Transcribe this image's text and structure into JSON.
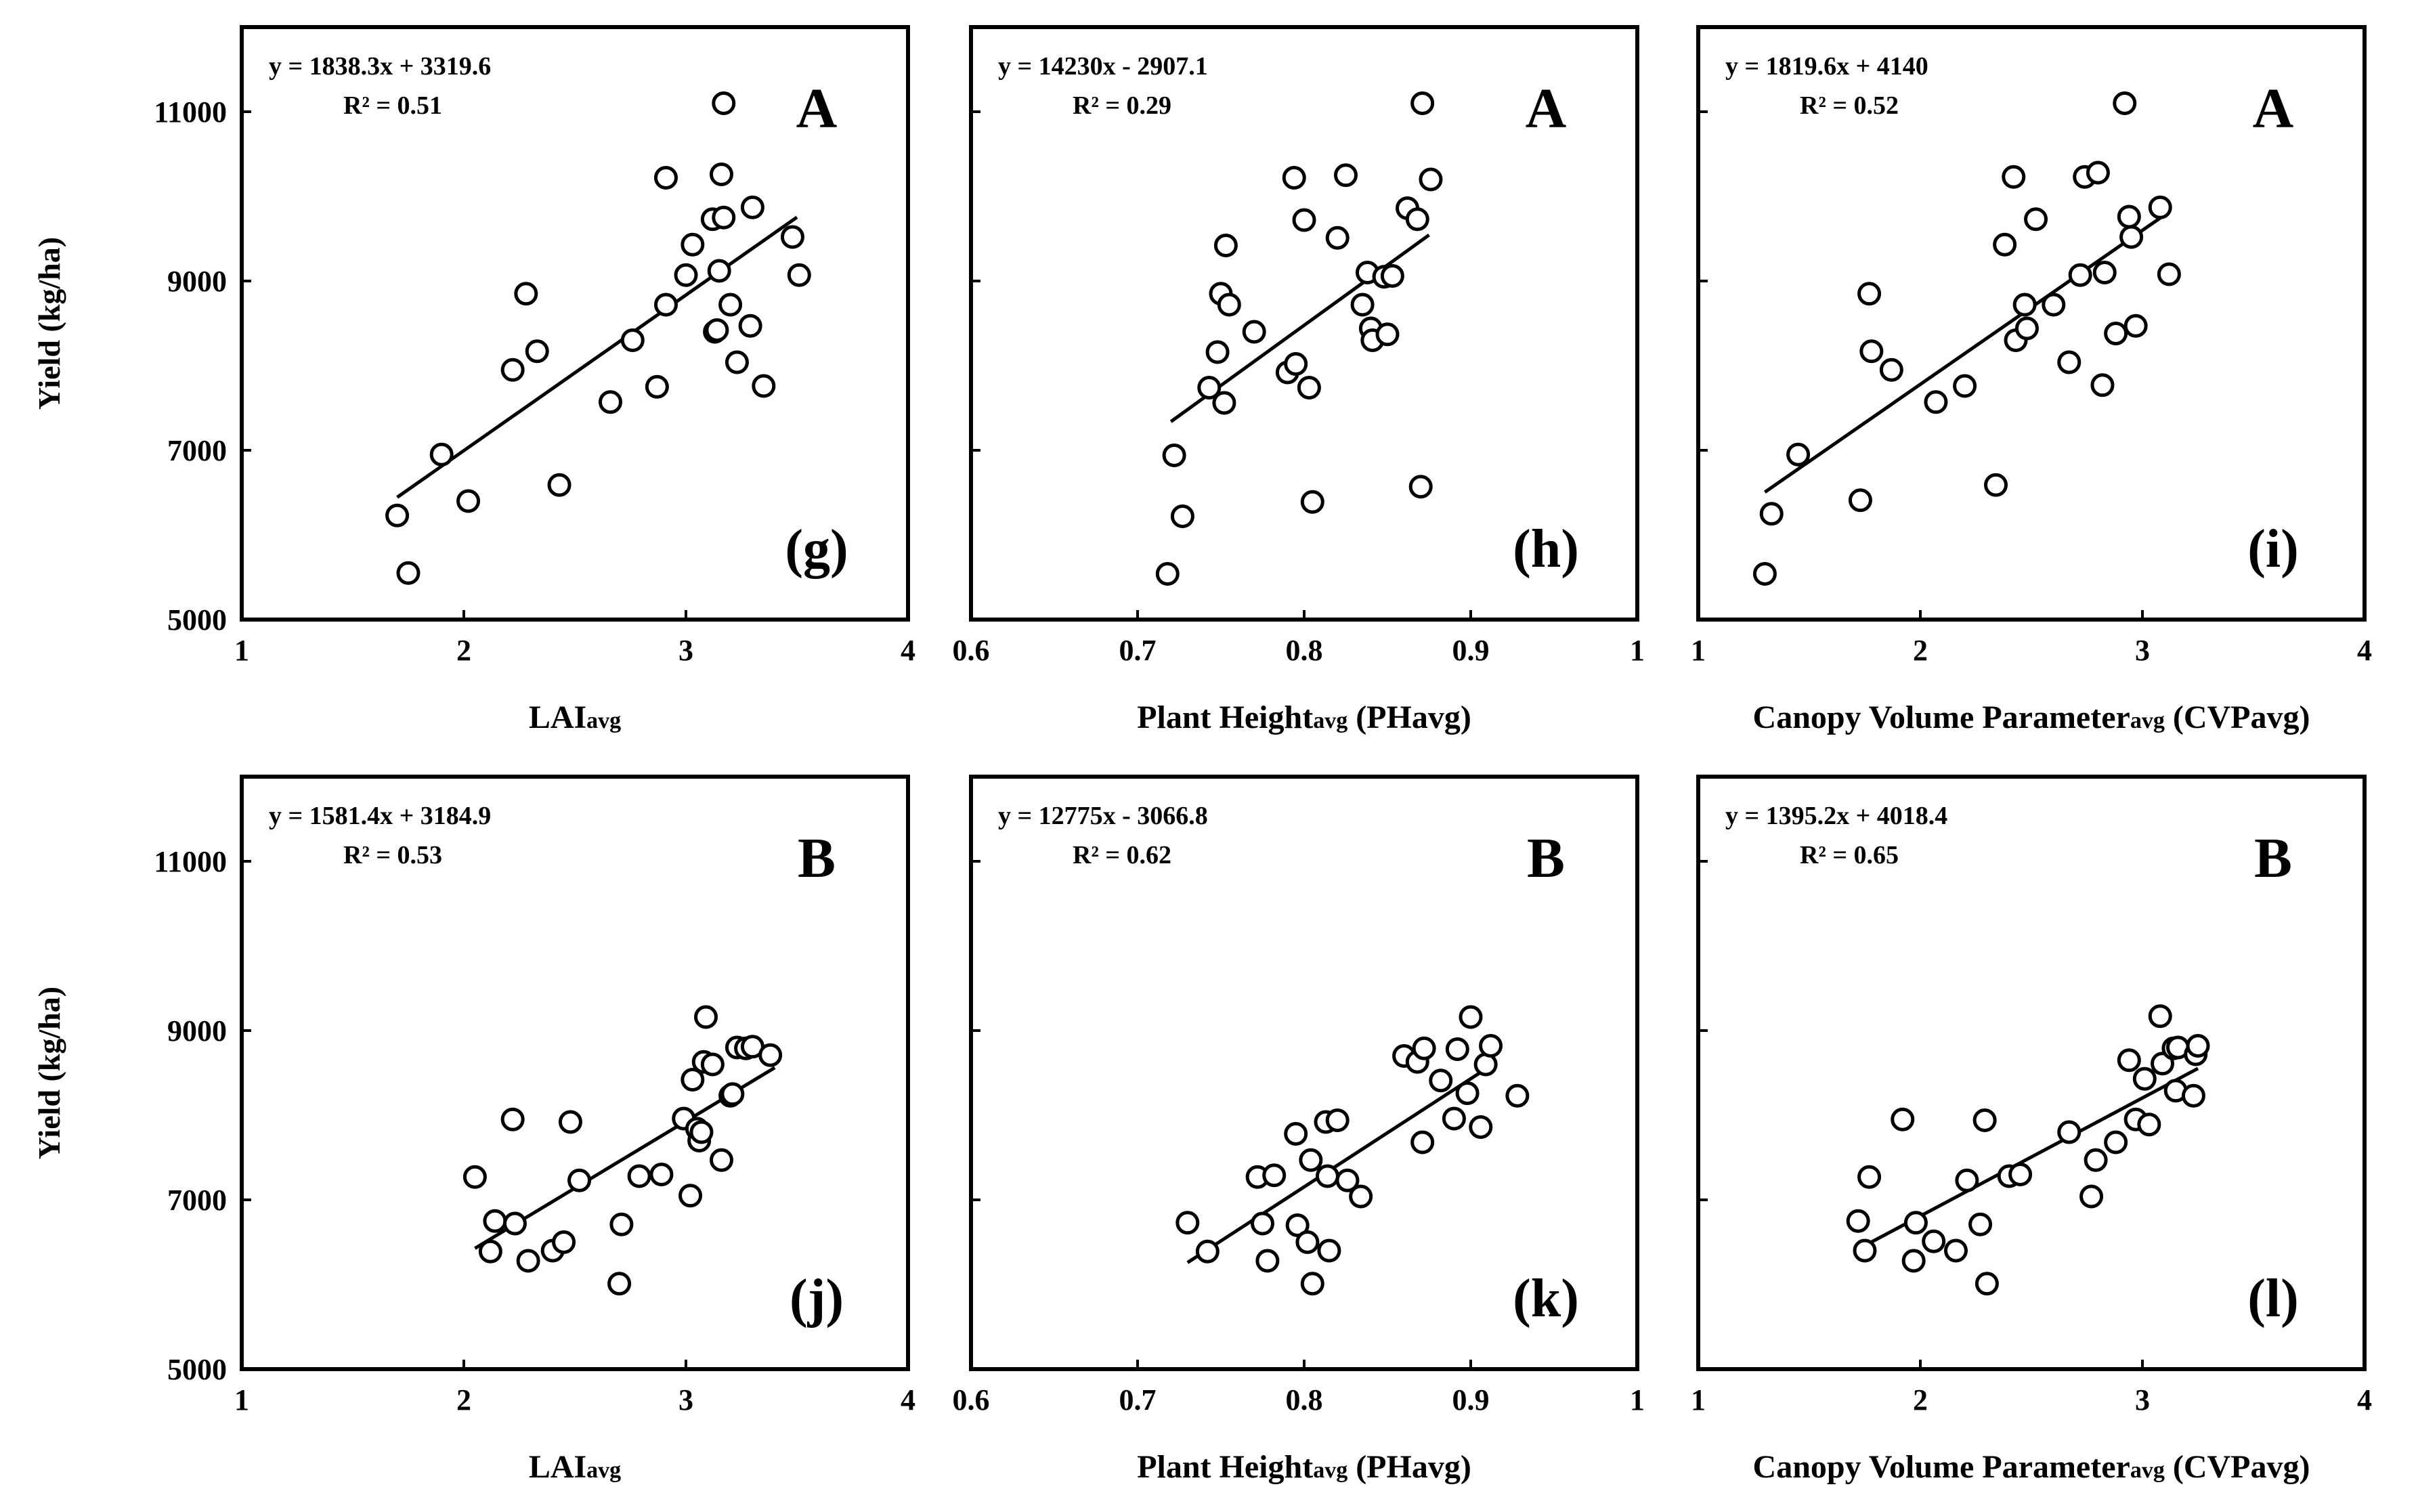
{
  "figure": {
    "background": "#ffffff",
    "ink": "#000000"
  },
  "chart_data": [
    {
      "type": "scatter",
      "panel_id": "g",
      "panel_label": "(g)",
      "group": "A",
      "equation": "y = 1838.3x + 3319.6",
      "r2": "R² = 0.51",
      "slope": 1838.3,
      "intercept": 3319.6,
      "fit_x_range": [
        1.7,
        3.5
      ],
      "xlabel_main": "LAI",
      "xlabel_sub": "avg",
      "xlabel_tail": "",
      "ylabel": "Yield (kg/ha)",
      "xlim": [
        1,
        4
      ],
      "xticks": [
        1,
        2,
        3,
        4
      ],
      "xtick_labels": [
        "1",
        "2",
        "3",
        "4"
      ],
      "ylim": [
        5000,
        12000
      ],
      "yticks": [
        5000,
        7000,
        9000,
        11000
      ],
      "ytick_labels": [
        "5000",
        "7000",
        "9000",
        "11000"
      ],
      "points": [
        [
          1.7,
          6230
        ],
        [
          1.75,
          5550
        ],
        [
          1.9,
          6950
        ],
        [
          2.02,
          6400
        ],
        [
          2.22,
          7950
        ],
        [
          2.28,
          8850
        ],
        [
          2.33,
          8170
        ],
        [
          2.43,
          6590
        ],
        [
          2.66,
          7570
        ],
        [
          2.76,
          8300
        ],
        [
          2.87,
          7750
        ],
        [
          2.91,
          10220
        ],
        [
          2.91,
          8720
        ],
        [
          3.0,
          9070
        ],
        [
          3.03,
          9430
        ],
        [
          3.12,
          9730
        ],
        [
          3.13,
          8400
        ],
        [
          3.14,
          8420
        ],
        [
          3.15,
          9120
        ],
        [
          3.16,
          10260
        ],
        [
          3.17,
          9750
        ],
        [
          3.17,
          11100
        ],
        [
          3.2,
          8720
        ],
        [
          3.23,
          8040
        ],
        [
          3.29,
          8470
        ],
        [
          3.3,
          9870
        ],
        [
          3.35,
          7760
        ],
        [
          3.48,
          9520
        ],
        [
          3.51,
          9070
        ]
      ]
    },
    {
      "type": "scatter",
      "panel_id": "h",
      "panel_label": "(h)",
      "group": "A",
      "equation": "y = 14230x - 2907.1",
      "r2": "R² = 0.29",
      "slope": 14230,
      "intercept": -2907.1,
      "fit_x_range": [
        0.72,
        0.875
      ],
      "xlabel_main": "Plant Height",
      "xlabel_sub": "avg",
      "xlabel_tail": " (PHavg)",
      "ylabel": "",
      "xlim": [
        0.6,
        1.0
      ],
      "xticks": [
        0.6,
        0.7,
        0.8,
        0.9,
        1.0
      ],
      "xtick_labels": [
        "0.6",
        "0.7",
        "0.8",
        "0.9",
        "1"
      ],
      "ylim": [
        5000,
        12000
      ],
      "yticks": [
        5000,
        7000,
        9000,
        11000
      ],
      "ytick_labels": [
        "",
        "",
        "",
        ""
      ],
      "points": [
        [
          0.718,
          5540
        ],
        [
          0.722,
          6940
        ],
        [
          0.727,
          6220
        ],
        [
          0.743,
          7740
        ],
        [
          0.748,
          8160
        ],
        [
          0.75,
          8850
        ],
        [
          0.752,
          7560
        ],
        [
          0.753,
          9420
        ],
        [
          0.755,
          8720
        ],
        [
          0.77,
          8400
        ],
        [
          0.79,
          7920
        ],
        [
          0.794,
          10220
        ],
        [
          0.795,
          8020
        ],
        [
          0.8,
          9720
        ],
        [
          0.803,
          7740
        ],
        [
          0.805,
          6390
        ],
        [
          0.82,
          9510
        ],
        [
          0.825,
          10250
        ],
        [
          0.835,
          8720
        ],
        [
          0.838,
          9100
        ],
        [
          0.84,
          8440
        ],
        [
          0.841,
          8300
        ],
        [
          0.848,
          9050
        ],
        [
          0.85,
          8370
        ],
        [
          0.853,
          9060
        ],
        [
          0.862,
          9860
        ],
        [
          0.868,
          9730
        ],
        [
          0.87,
          6570
        ],
        [
          0.871,
          11100
        ],
        [
          0.876,
          10200
        ]
      ]
    },
    {
      "type": "scatter",
      "panel_id": "i",
      "panel_label": "(i)",
      "group": "A",
      "equation": "y = 1819.6x + 4140",
      "r2": "R² = 0.52",
      "slope": 1819.6,
      "intercept": 4140,
      "fit_x_range": [
        1.3,
        3.1
      ],
      "xlabel_main": "Canopy Volume Parameter",
      "xlabel_sub": "avg",
      "xlabel_tail": " (CVPavg)",
      "ylabel": "",
      "xlim": [
        1,
        4
      ],
      "xticks": [
        1,
        2,
        3,
        4
      ],
      "xtick_labels": [
        "1",
        "2",
        "3",
        "4"
      ],
      "ylim": [
        5000,
        12000
      ],
      "yticks": [
        5000,
        7000,
        9000,
        11000
      ],
      "ytick_labels": [
        "",
        "",
        "",
        ""
      ],
      "points": [
        [
          1.3,
          5540
        ],
        [
          1.33,
          6250
        ],
        [
          1.45,
          6950
        ],
        [
          1.73,
          6410
        ],
        [
          1.77,
          8850
        ],
        [
          1.78,
          8170
        ],
        [
          1.87,
          7950
        ],
        [
          2.07,
          7570
        ],
        [
          2.2,
          7760
        ],
        [
          2.34,
          6590
        ],
        [
          2.38,
          9430
        ],
        [
          2.42,
          10230
        ],
        [
          2.43,
          8300
        ],
        [
          2.47,
          8720
        ],
        [
          2.48,
          8440
        ],
        [
          2.52,
          9730
        ],
        [
          2.6,
          8720
        ],
        [
          2.67,
          8040
        ],
        [
          2.72,
          9070
        ],
        [
          2.74,
          10230
        ],
        [
          2.8,
          10280
        ],
        [
          2.82,
          7770
        ],
        [
          2.83,
          9100
        ],
        [
          2.88,
          8380
        ],
        [
          2.92,
          11100
        ],
        [
          2.94,
          9760
        ],
        [
          2.95,
          9520
        ],
        [
          2.97,
          8470
        ],
        [
          3.08,
          9870
        ],
        [
          3.12,
          9080
        ]
      ]
    },
    {
      "type": "scatter",
      "panel_id": "j",
      "panel_label": "(j)",
      "group": "B",
      "equation": "y = 1581.4x + 3184.9",
      "r2": "R² = 0.53",
      "slope": 1581.4,
      "intercept": 3184.9,
      "fit_x_range": [
        2.05,
        3.4
      ],
      "xlabel_main": "LAI",
      "xlabel_sub": "avg",
      "xlabel_tail": "",
      "ylabel": "Yield (kg/ha)",
      "xlim": [
        1,
        4
      ],
      "xticks": [
        1,
        2,
        3,
        4
      ],
      "xtick_labels": [
        "1",
        "2",
        "3",
        "4"
      ],
      "ylim": [
        5000,
        12000
      ],
      "yticks": [
        5000,
        7000,
        9000,
        11000
      ],
      "ytick_labels": [
        "5000",
        "7000",
        "9000",
        "11000"
      ],
      "points": [
        [
          2.05,
          7270
        ],
        [
          2.12,
          6390
        ],
        [
          2.14,
          6750
        ],
        [
          2.22,
          7950
        ],
        [
          2.23,
          6720
        ],
        [
          2.29,
          6280
        ],
        [
          2.4,
          6400
        ],
        [
          2.45,
          6500
        ],
        [
          2.48,
          7920
        ],
        [
          2.52,
          7230
        ],
        [
          2.7,
          6010
        ],
        [
          2.71,
          6710
        ],
        [
          2.79,
          7280
        ],
        [
          2.89,
          7300
        ],
        [
          2.99,
          7960
        ],
        [
          3.02,
          7050
        ],
        [
          3.03,
          8420
        ],
        [
          3.05,
          7840
        ],
        [
          3.06,
          7700
        ],
        [
          3.07,
          7800
        ],
        [
          3.08,
          8630
        ],
        [
          3.09,
          9160
        ],
        [
          3.12,
          8600
        ],
        [
          3.16,
          7470
        ],
        [
          3.2,
          8230
        ],
        [
          3.21,
          8250
        ],
        [
          3.23,
          8800
        ],
        [
          3.27,
          8790
        ],
        [
          3.3,
          8810
        ],
        [
          3.38,
          8710
        ]
      ]
    },
    {
      "type": "scatter",
      "panel_id": "k",
      "panel_label": "(k)",
      "group": "B",
      "equation": "y = 12775x - 3066.8",
      "r2": "R² = 0.62",
      "slope": 12775,
      "intercept": -3066.8,
      "fit_x_range": [
        0.73,
        0.915
      ],
      "xlabel_main": "Plant Height",
      "xlabel_sub": "avg",
      "xlabel_tail": " (PHavg)",
      "ylabel": "",
      "xlim": [
        0.6,
        1.0
      ],
      "xticks": [
        0.6,
        0.7,
        0.8,
        0.9,
        1.0
      ],
      "xtick_labels": [
        "0.6",
        "0.7",
        "0.8",
        "0.9",
        "1"
      ],
      "ylim": [
        5000,
        12000
      ],
      "yticks": [
        5000,
        7000,
        9000,
        11000
      ],
      "ytick_labels": [
        "",
        "",
        "",
        ""
      ],
      "points": [
        [
          0.73,
          6730
        ],
        [
          0.742,
          6390
        ],
        [
          0.772,
          7270
        ],
        [
          0.775,
          6720
        ],
        [
          0.778,
          6280
        ],
        [
          0.782,
          7290
        ],
        [
          0.795,
          7780
        ],
        [
          0.796,
          6700
        ],
        [
          0.802,
          6500
        ],
        [
          0.804,
          7470
        ],
        [
          0.805,
          6010
        ],
        [
          0.813,
          7920
        ],
        [
          0.814,
          7280
        ],
        [
          0.815,
          6400
        ],
        [
          0.82,
          7940
        ],
        [
          0.826,
          7230
        ],
        [
          0.834,
          7040
        ],
        [
          0.86,
          8700
        ],
        [
          0.868,
          8630
        ],
        [
          0.871,
          7680
        ],
        [
          0.872,
          8790
        ],
        [
          0.882,
          8410
        ],
        [
          0.89,
          7960
        ],
        [
          0.892,
          8780
        ],
        [
          0.898,
          8260
        ],
        [
          0.9,
          9160
        ],
        [
          0.906,
          7860
        ],
        [
          0.909,
          8600
        ],
        [
          0.912,
          8820
        ],
        [
          0.928,
          8230
        ]
      ]
    },
    {
      "type": "scatter",
      "panel_id": "l",
      "panel_label": "(l)",
      "group": "B",
      "equation": "y = 1395.2x + 4018.4",
      "r2": "R² = 0.65",
      "slope": 1395.2,
      "intercept": 4018.4,
      "fit_x_range": [
        1.72,
        3.25
      ],
      "xlabel_main": "Canopy Volume Parameter",
      "xlabel_sub": "avg",
      "xlabel_tail": " (CVPavg)",
      "ylabel": "",
      "xlim": [
        1,
        4
      ],
      "xticks": [
        1,
        2,
        3,
        4
      ],
      "xtick_labels": [
        "1",
        "2",
        "3",
        "4"
      ],
      "ylim": [
        5000,
        12000
      ],
      "yticks": [
        5000,
        7000,
        9000,
        11000
      ],
      "ytick_labels": [
        "",
        "",
        "",
        ""
      ],
      "points": [
        [
          1.72,
          6750
        ],
        [
          1.75,
          6400
        ],
        [
          1.77,
          7270
        ],
        [
          1.92,
          7950
        ],
        [
          1.97,
          6280
        ],
        [
          1.98,
          6730
        ],
        [
          2.06,
          6510
        ],
        [
          2.16,
          6400
        ],
        [
          2.21,
          7230
        ],
        [
          2.27,
          6710
        ],
        [
          2.29,
          7940
        ],
        [
          2.3,
          6010
        ],
        [
          2.4,
          7280
        ],
        [
          2.45,
          7300
        ],
        [
          2.67,
          7800
        ],
        [
          2.77,
          7040
        ],
        [
          2.79,
          7470
        ],
        [
          2.88,
          7680
        ],
        [
          2.94,
          8650
        ],
        [
          2.97,
          7950
        ],
        [
          3.01,
          8430
        ],
        [
          3.03,
          7890
        ],
        [
          3.08,
          9170
        ],
        [
          3.09,
          8610
        ],
        [
          3.14,
          8790
        ],
        [
          3.15,
          8290
        ],
        [
          3.16,
          8800
        ],
        [
          3.23,
          8230
        ],
        [
          3.24,
          8720
        ],
        [
          3.25,
          8820
        ]
      ]
    }
  ]
}
